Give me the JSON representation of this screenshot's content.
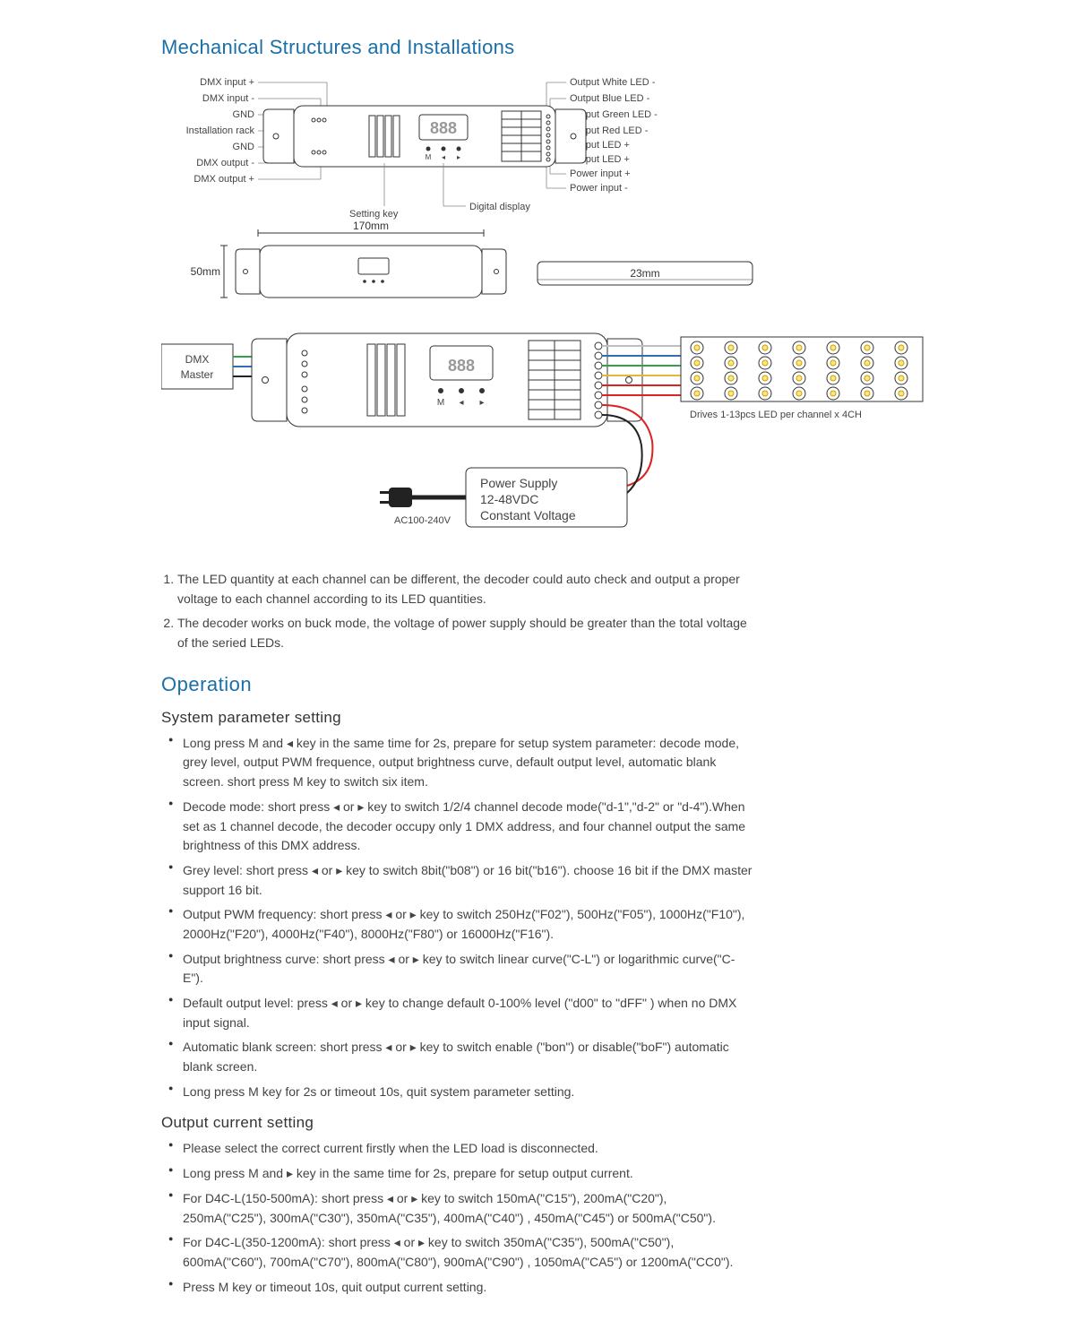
{
  "headings": {
    "mechanical": "Mechanical Structures and Installations",
    "operation": "Operation",
    "sysparam": "System parameter setting",
    "outcurrent": "Output current setting"
  },
  "diagram": {
    "leftLabels": [
      "DMX input +",
      "DMX input -",
      "GND",
      "Installation rack",
      "GND",
      "DMX output -",
      "DMX output +"
    ],
    "rightLabels": [
      "Output White LED -",
      "Output Blue LED -",
      "Output Green LED -",
      "Output Red LED -",
      "Output LED +",
      "Output LED +",
      "Power input +",
      "Power input -"
    ],
    "belowLabels": {
      "setting": "Setting key",
      "display": "Digital display"
    },
    "display": "888",
    "dims": {
      "width": "170mm",
      "height": "50mm",
      "depth": "23mm"
    },
    "master": "DMX\nMaster",
    "driveNote": "Drives 1-13pcs LED per channel x 4CH",
    "power": {
      "line1": "Power Supply",
      "line2": "12-48VDC",
      "line3": "Constant Voltage",
      "ac": "AC100-240V"
    },
    "colors": {
      "white": "#bfbfbf",
      "blue": "#2e6fb7",
      "green": "#2fa24a",
      "yellow": "#e0b83a",
      "red": "#d22",
      "black": "#222"
    }
  },
  "notes": [
    "The LED quantity at each channel can be different, the decoder could auto check and output a proper voltage to each channel according to its LED quantities.",
    "The decoder works on buck mode, the voltage of power supply should be greater than the total voltage of the seried LEDs."
  ],
  "sysParamBullets": [
    "Long press M and ◂ key in the same time for 2s, prepare for setup system parameter: decode mode, grey level, output PWM frequence, output brightness curve, default output level, automatic blank screen. short press M key to switch six item.",
    "Decode mode: short press ◂ or ▸ key to switch 1/2/4 channel decode mode(\"d-1\",\"d-2\" or \"d-4\").When set as 1 channel decode, the decoder occupy only 1 DMX address, and four channel output the same brightness of this DMX address.",
    "Grey level: short press ◂ or ▸ key to switch 8bit(\"b08\") or 16 bit(\"b16\"). choose 16 bit if the DMX master support 16 bit.",
    "Output PWM frequency: short press ◂ or ▸ key to switch 250Hz(\"F02\"), 500Hz(\"F05\"), 1000Hz(\"F10\"), 2000Hz(\"F20\"), 4000Hz(\"F40\"), 8000Hz(\"F80\") or 16000Hz(\"F16\").",
    "Output brightness curve: short press ◂ or ▸ key to switch linear curve(\"C-L\") or logarithmic curve(\"C-E\").",
    "Default output level: press ◂ or ▸ key to change default 0-100% level (\"d00\" to \"dFF\" ) when no DMX input signal.",
    "Automatic blank screen: short press ◂ or ▸ key to switch enable (\"bon\") or disable(\"boF\") automatic blank screen.",
    "Long press M key for 2s or timeout 10s, quit system parameter setting."
  ],
  "outCurrentBullets": [
    "Please select the correct current firstly when the LED load is disconnected.",
    "Long press M and ▸ key in the same time for 2s, prepare for setup output current.",
    "For D4C-L(150-500mA): short press ◂ or ▸ key to switch 150mA(\"C15\"), 200mA(\"C20\"), 250mA(\"C25\"), 300mA(\"C30\"), 350mA(\"C35\"), 400mA(\"C40\") , 450mA(\"C45\") or 500mA(\"C50\").",
    "For D4C-L(350-1200mA): short press ◂ or ▸ key to switch 350mA(\"C35\"), 500mA(\"C50\"), 600mA(\"C60\"), 700mA(\"C70\"), 800mA(\"C80\"), 900mA(\"C90\") , 1050mA(\"CA5\") or 1200mA(\"CC0\").",
    "Press M key or timeout 10s, quit output current setting."
  ]
}
